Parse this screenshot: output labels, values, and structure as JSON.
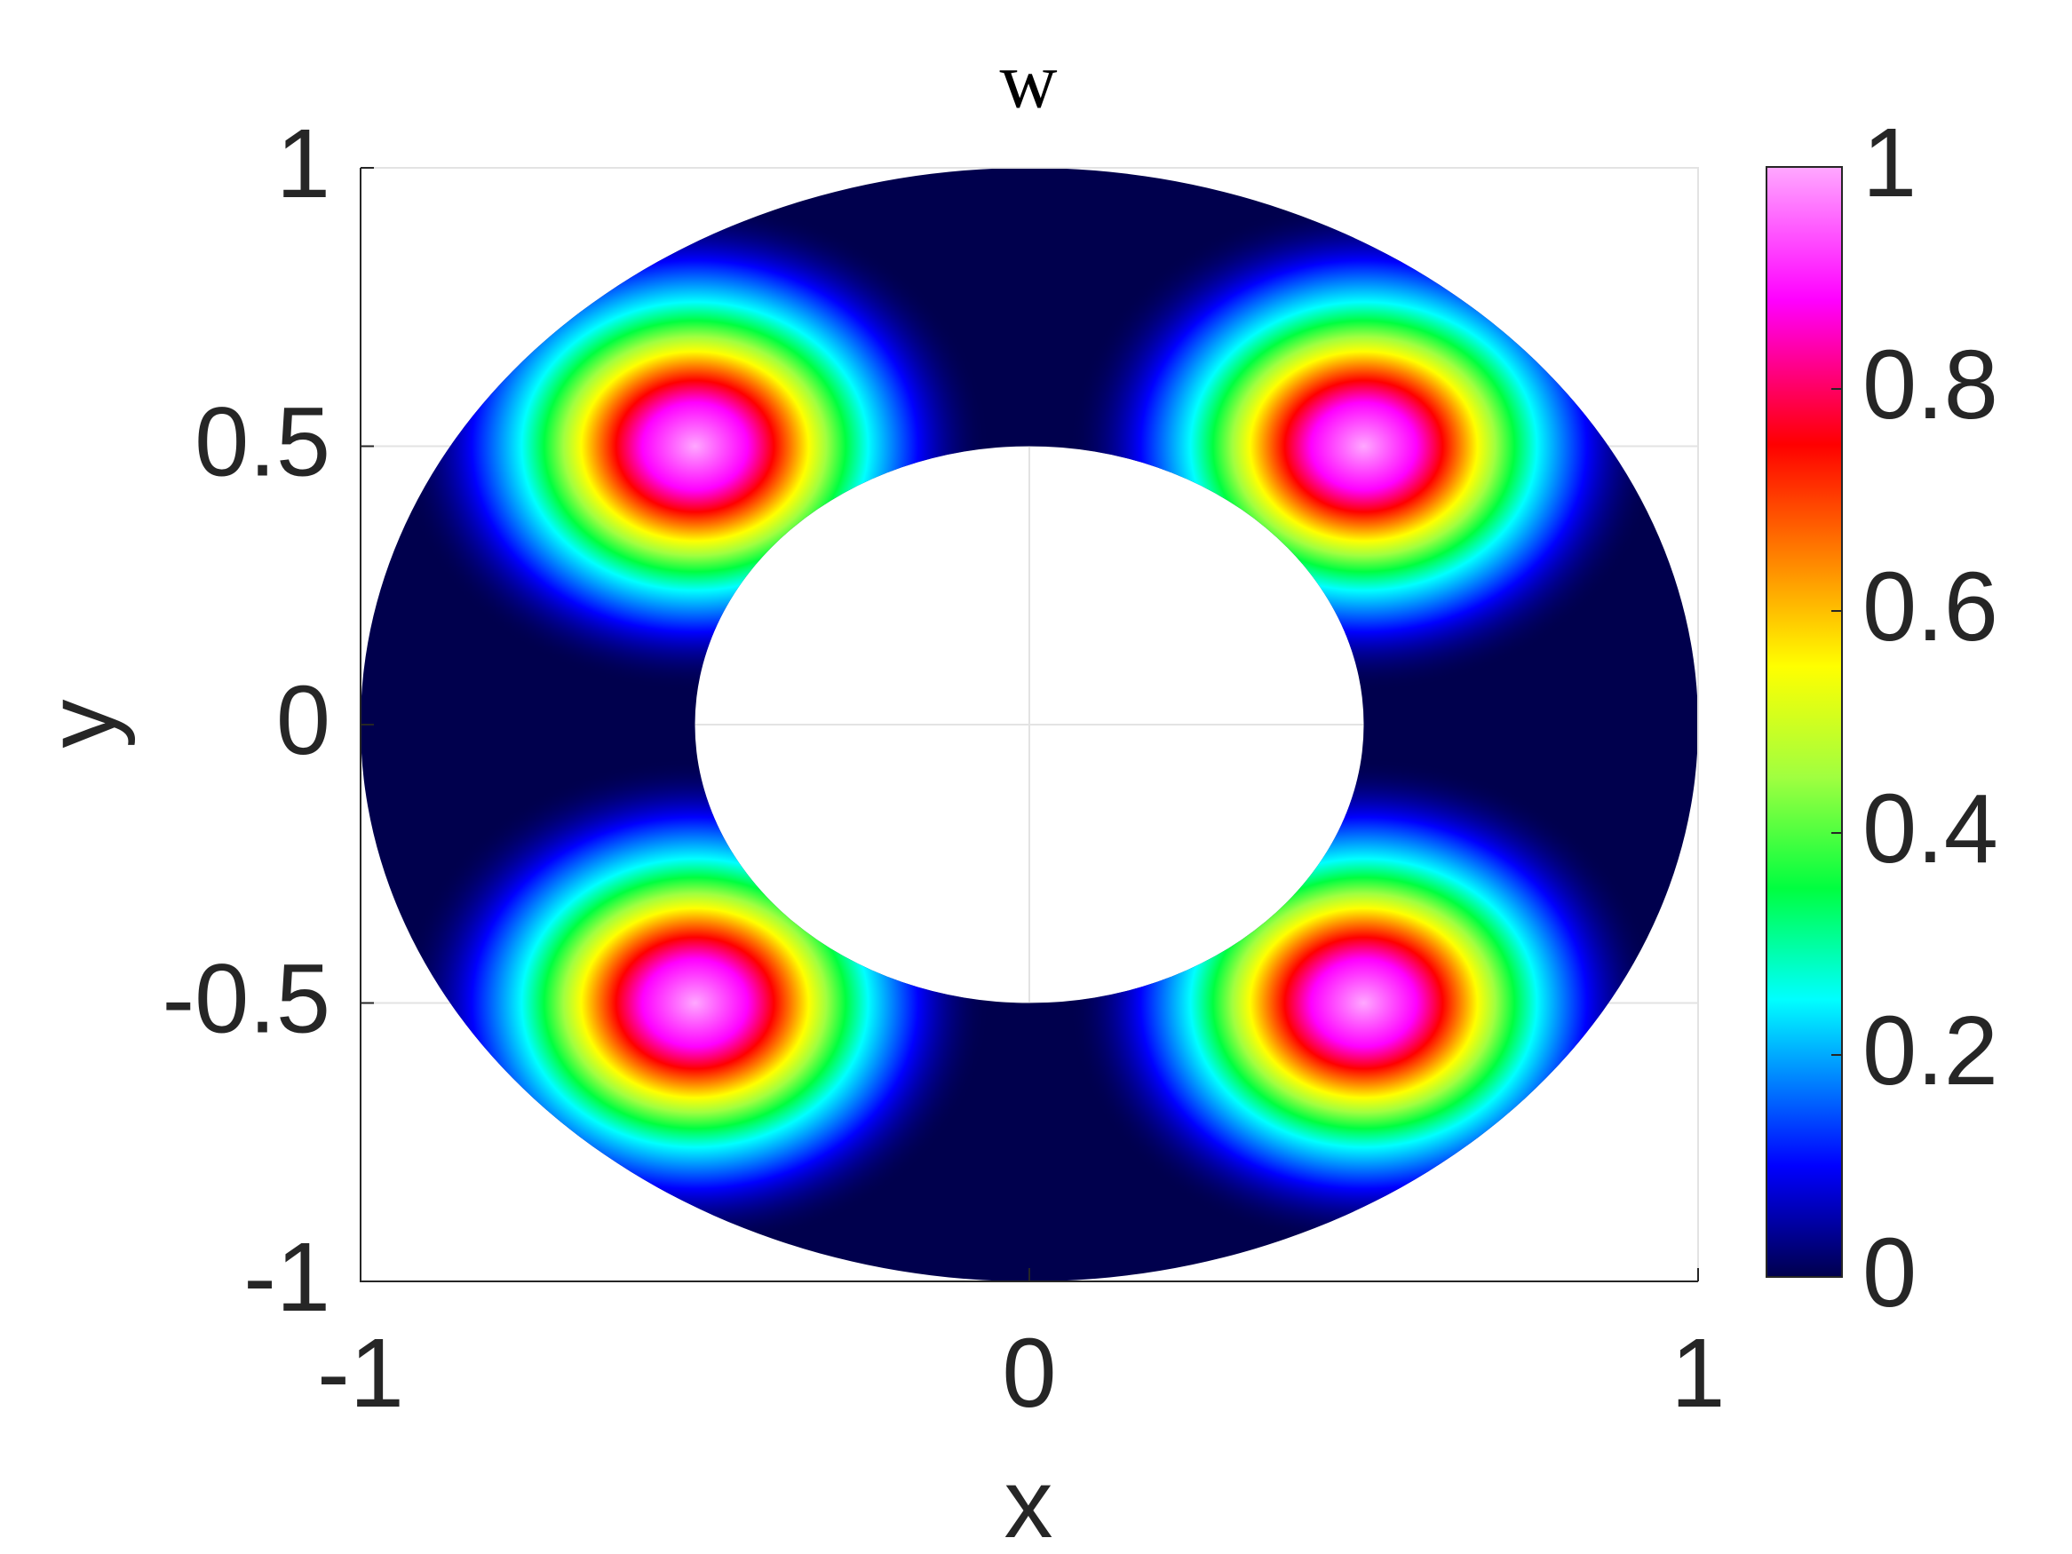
{
  "chart_data": {
    "type": "heatmap",
    "title": "w",
    "x_label": "x",
    "y_label": "y",
    "xlim": [
      -1,
      1
    ],
    "ylim": [
      -1,
      1
    ],
    "xticks": [
      -1,
      0,
      1
    ],
    "yticks": [
      -1,
      -0.5,
      0,
      0.5,
      1
    ],
    "grid": true,
    "domain": {
      "shape": "annulus",
      "inner_radius": 0.5,
      "outer_radius": 1
    },
    "peaks": [
      {
        "x": -0.5,
        "y": 0.5,
        "value": 1
      },
      {
        "x": 0.5,
        "y": 0.5,
        "value": 1
      },
      {
        "x": -0.5,
        "y": -0.5,
        "value": 1
      },
      {
        "x": 0.5,
        "y": -0.5,
        "value": 1
      }
    ],
    "peak_width": 0.22,
    "clim": [
      0,
      1
    ],
    "cticks": [
      0,
      0.2,
      0.4,
      0.6,
      0.8,
      1
    ],
    "colormap": [
      {
        "value": 0,
        "color": "#00004d"
      },
      {
        "value": 0.1,
        "color": "#0000ff"
      },
      {
        "value": 0.25,
        "color": "#00ffff"
      },
      {
        "value": 0.35,
        "color": "#00ff40"
      },
      {
        "value": 0.45,
        "color": "#a0ff40"
      },
      {
        "value": 0.55,
        "color": "#ffff00"
      },
      {
        "value": 0.65,
        "color": "#ff8000"
      },
      {
        "value": 0.75,
        "color": "#ff0000"
      },
      {
        "value": 0.88,
        "color": "#ff00ff"
      },
      {
        "value": 1,
        "color": "#ffa8ff"
      }
    ]
  }
}
